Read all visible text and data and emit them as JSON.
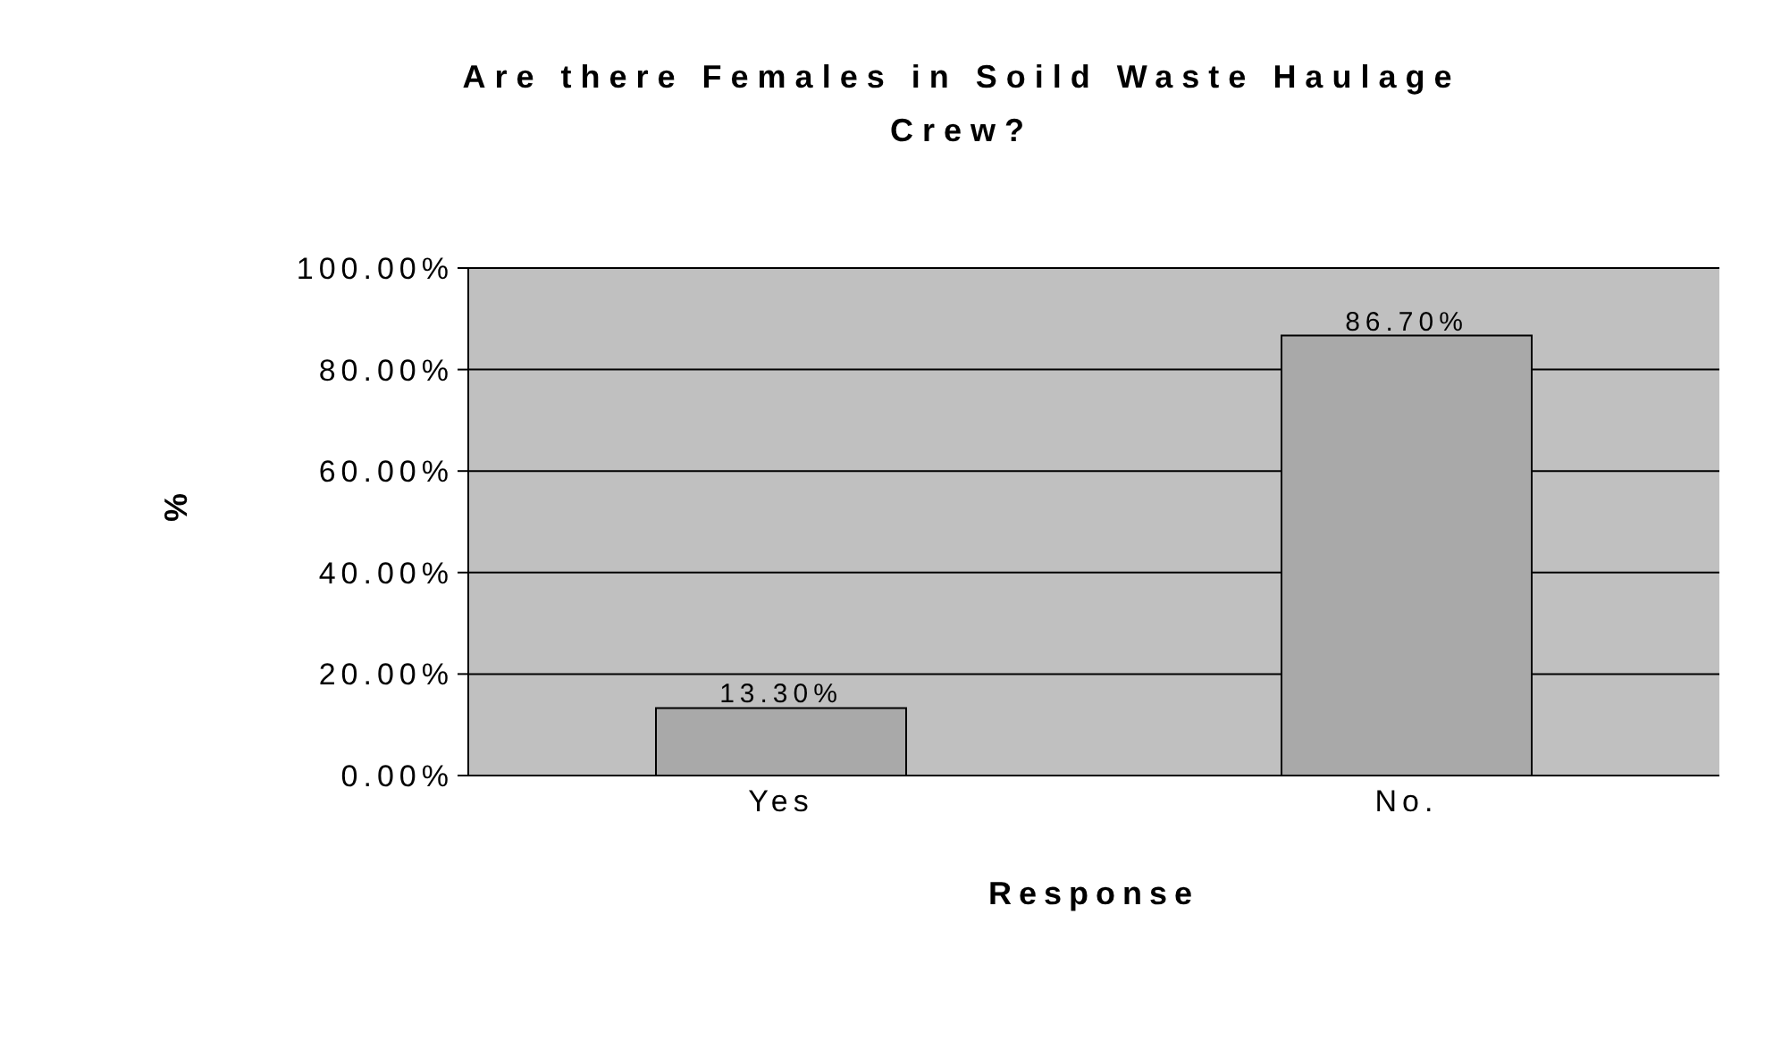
{
  "chart_data": {
    "type": "bar",
    "title": "Are there Females in Soild Waste Haulage Crew?",
    "xlabel": "Response",
    "ylabel": "%",
    "categories": [
      "Yes",
      "No."
    ],
    "values": [
      13.3,
      86.7
    ],
    "value_labels": [
      "13.30%",
      "86.70%"
    ],
    "color": "#a9a9a9",
    "ylim": [
      0,
      100
    ],
    "yticks": [
      {
        "value": 0,
        "label": "0.00%"
      },
      {
        "value": 20,
        "label": "20.00%"
      },
      {
        "value": 40,
        "label": "40.00%"
      },
      {
        "value": 60,
        "label": "60.00%"
      },
      {
        "value": 80,
        "label": "80.00%"
      },
      {
        "value": 100,
        "label": "100.00%"
      }
    ],
    "grid": "y",
    "legend": false
  }
}
